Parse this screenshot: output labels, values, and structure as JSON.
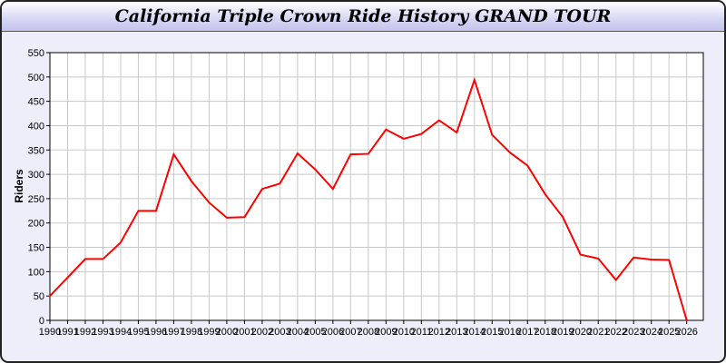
{
  "chart_data": {
    "type": "line",
    "title": "California Triple Crown Ride History GRAND TOUR",
    "xlabel": "",
    "ylabel": "Riders",
    "ylim": [
      0,
      550
    ],
    "yticks": [
      0,
      50,
      100,
      150,
      200,
      250,
      300,
      350,
      400,
      450,
      500,
      550
    ],
    "grid": true,
    "line_color": "#ff0000",
    "x": [
      1990,
      1991,
      1992,
      1993,
      1994,
      1995,
      1996,
      1997,
      1998,
      1999,
      2000,
      2001,
      2002,
      2003,
      2004,
      2005,
      2006,
      2007,
      2008,
      2009,
      2010,
      2011,
      2012,
      2013,
      2014,
      2015,
      2016,
      2017,
      2018,
      2019,
      2020,
      2021,
      2022,
      2023,
      2024,
      2025,
      2026
    ],
    "series": [
      {
        "values": [
          50,
          88,
          126,
          126,
          160,
          225,
          225,
          341,
          286,
          242,
          211,
          212,
          270,
          281,
          343,
          310,
          270,
          341,
          342,
          392,
          373,
          383,
          411,
          386,
          494,
          381,
          345,
          318,
          259,
          212,
          135,
          127,
          83,
          129,
          125,
          124,
          0
        ]
      }
    ]
  }
}
